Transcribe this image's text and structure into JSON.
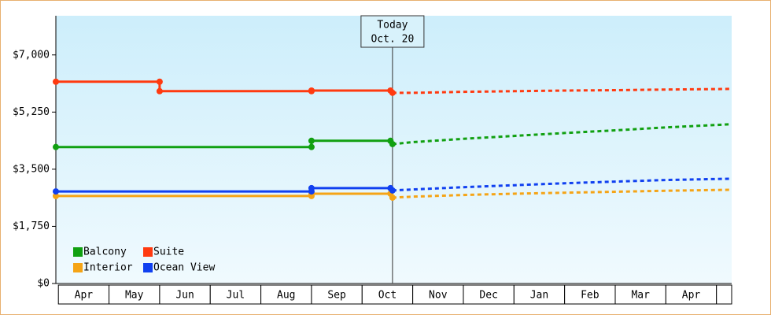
{
  "chart_data": {
    "type": "line",
    "xlim": [
      -0.05,
      13.3
    ],
    "xticks": [
      {
        "value": 0.5,
        "label": "Apr"
      },
      {
        "value": 1.5,
        "label": "May"
      },
      {
        "value": 2.5,
        "label": "Jun"
      },
      {
        "value": 3.5,
        "label": "Jul"
      },
      {
        "value": 4.5,
        "label": "Aug"
      },
      {
        "value": 5.5,
        "label": "Sep"
      },
      {
        "value": 6.5,
        "label": "Oct"
      },
      {
        "value": 7.5,
        "label": "Nov"
      },
      {
        "value": 8.5,
        "label": "Dec"
      },
      {
        "value": 9.5,
        "label": "Jan"
      },
      {
        "value": 10.5,
        "label": "Feb"
      },
      {
        "value": 11.5,
        "label": "Mar"
      },
      {
        "value": 12.5,
        "label": "Apr"
      }
    ],
    "ylim": [
      0,
      8200
    ],
    "yticks": [
      {
        "value": 0,
        "label": "$0"
      },
      {
        "value": 1750,
        "label": "$1,750"
      },
      {
        "value": 3500,
        "label": "$3,500"
      },
      {
        "value": 5250,
        "label": "$5,250"
      },
      {
        "value": 7000,
        "label": "$7,000"
      }
    ],
    "annotation": {
      "x": 6.6,
      "lines": [
        "Today",
        "Oct. 20"
      ]
    },
    "series": [
      {
        "name": "Balcony",
        "color": "#11a011",
        "x": [
          -0.05,
          5,
          5,
          6.56,
          6.6
        ],
        "values": [
          4180,
          4180,
          4370,
          4370,
          4270
        ],
        "forecast_x": [
          6.6,
          7,
          8,
          9,
          10,
          11,
          12,
          13.3
        ],
        "forecast_values": [
          4270,
          4330,
          4430,
          4520,
          4610,
          4690,
          4780,
          4880
        ]
      },
      {
        "name": "Suite",
        "color": "#ff3a10",
        "x": [
          -0.05,
          2,
          2,
          5,
          5,
          6.56,
          6.6
        ],
        "values": [
          6180,
          6180,
          5890,
          5890,
          5910,
          5910,
          5840
        ],
        "forecast_x": [
          6.6,
          7,
          8,
          9,
          10,
          11,
          12,
          13.3
        ],
        "forecast_values": [
          5840,
          5840,
          5870,
          5890,
          5910,
          5920,
          5940,
          5960
        ]
      },
      {
        "name": "Interior",
        "color": "#f5a416",
        "x": [
          -0.05,
          5,
          5,
          6.56,
          6.6
        ],
        "values": [
          2680,
          2680,
          2750,
          2750,
          2630
        ],
        "forecast_x": [
          6.6,
          7,
          8,
          9,
          10,
          11,
          12,
          13.3
        ],
        "forecast_values": [
          2630,
          2660,
          2710,
          2750,
          2780,
          2810,
          2840,
          2870
        ]
      },
      {
        "name": "Ocean View",
        "color": "#1040f0",
        "x": [
          -0.05,
          5,
          5,
          6.56,
          6.6
        ],
        "values": [
          2820,
          2820,
          2920,
          2920,
          2850
        ],
        "forecast_x": [
          6.6,
          7,
          8,
          9,
          10,
          11,
          12,
          13.3
        ],
        "forecast_values": [
          2850,
          2880,
          2950,
          3010,
          3070,
          3120,
          3170,
          3210
        ]
      }
    ]
  }
}
